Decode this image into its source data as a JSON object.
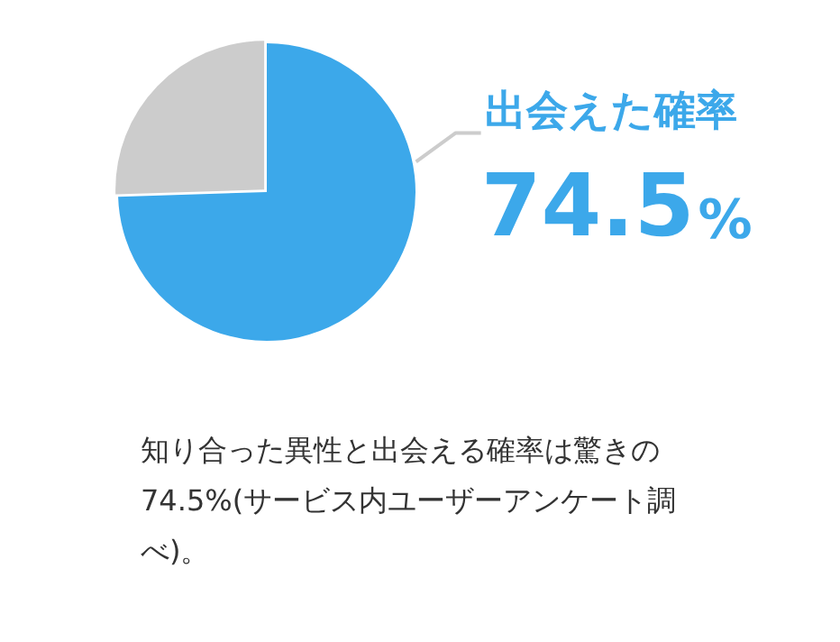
{
  "chart_data": {
    "type": "pie",
    "categories": [
      "出会えた確率",
      null
    ],
    "values": [
      74.5,
      25.5
    ],
    "colors": [
      "#3ca8ea",
      "#cccccc"
    ],
    "value_labels": [
      "74.5%",
      null
    ],
    "legend": false,
    "annotations": [
      "知り合った異性と出会える確率は驚きの74.5%(サービス内ユーザーアンケート調べ)。"
    ]
  }
}
